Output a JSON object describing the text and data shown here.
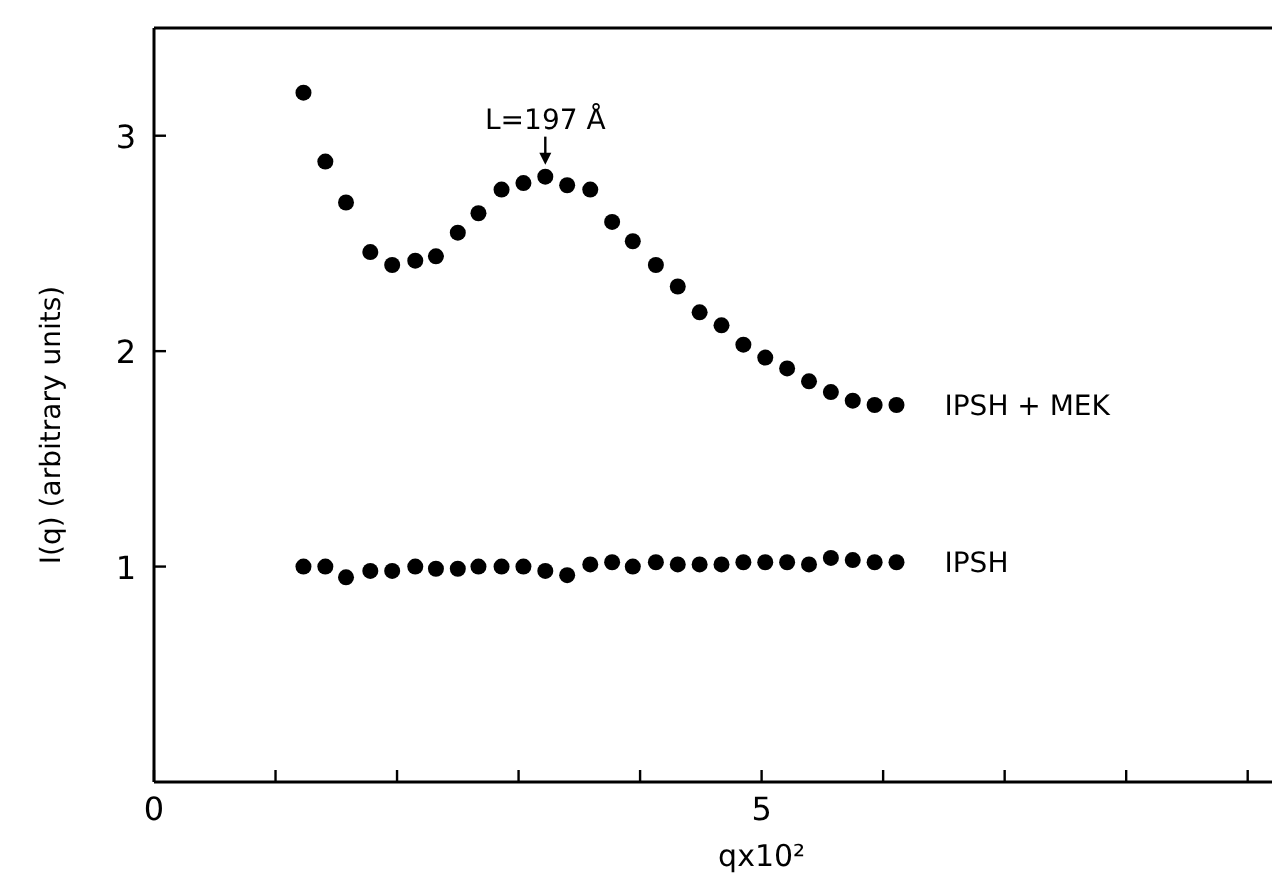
{
  "chart_data": {
    "type": "scatter",
    "xlabel": "qx10²",
    "ylabel": "I(q) (arbitrary units)",
    "marker": "circle",
    "grid": false,
    "x": [
      1.23,
      1.41,
      1.58,
      1.78,
      1.96,
      2.15,
      2.32,
      2.5,
      2.67,
      2.86,
      3.04,
      3.22,
      3.4,
      3.59,
      3.77,
      3.94,
      4.13,
      4.31,
      4.49,
      4.67,
      4.85,
      5.03,
      5.21,
      5.39,
      5.57,
      5.75,
      5.93,
      6.11
    ],
    "series": [
      {
        "name": "IPSH + MEK",
        "color": "#000000",
        "values": [
          3.2,
          2.88,
          2.69,
          2.46,
          2.4,
          2.42,
          2.44,
          2.55,
          2.64,
          2.75,
          2.78,
          2.81,
          2.77,
          2.75,
          2.6,
          2.51,
          2.4,
          2.3,
          2.18,
          2.12,
          2.03,
          1.97,
          1.92,
          1.86,
          1.81,
          1.77,
          1.75,
          1.75
        ]
      },
      {
        "name": "IPSH",
        "color": "#000000",
        "values": [
          1.0,
          1.0,
          0.95,
          0.98,
          0.98,
          1.0,
          0.99,
          0.99,
          1.0,
          1.0,
          1.0,
          0.98,
          0.96,
          1.01,
          1.02,
          1.0,
          1.02,
          1.01,
          1.01,
          1.01,
          1.02,
          1.02,
          1.02,
          1.01,
          1.04,
          1.03,
          1.02,
          1.02
        ]
      }
    ],
    "annotations": [
      {
        "text": "L=197 Å",
        "x": 3.22,
        "y": 2.81
      }
    ],
    "xlim": [
      0,
      9.2
    ],
    "ylim": [
      0,
      3.5
    ],
    "xticks": [
      {
        "value": 0,
        "label": "0"
      },
      {
        "value": 1,
        "label": null
      },
      {
        "value": 2,
        "label": null
      },
      {
        "value": 3,
        "label": null
      },
      {
        "value": 4,
        "label": null
      },
      5,
      {
        "value": 6,
        "label": null
      },
      {
        "value": 7,
        "label": null
      },
      {
        "value": 8,
        "label": null
      },
      {
        "value": 9,
        "label": null
      }
    ],
    "yticks": [
      1,
      2,
      3
    ]
  }
}
